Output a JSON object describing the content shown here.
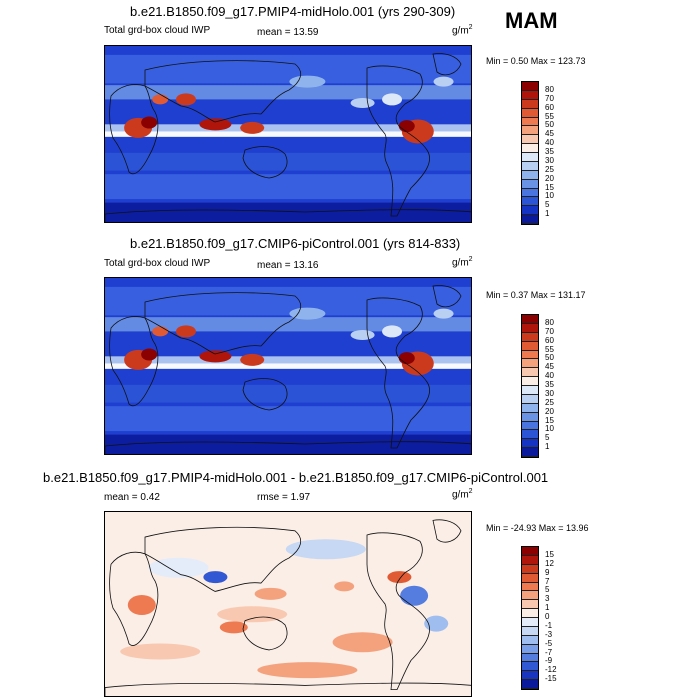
{
  "season": "MAM",
  "units_base": "g/m",
  "units_exp": "2",
  "panels": [
    {
      "title": "b.e21.B1850.f09_g17.PMIP4-midHolo.001 (yrs 290-309)",
      "left_label": "Total grd-box cloud IWP",
      "mean_text": "mean =  13.59",
      "minmax_text": "Min =   0.50 Max = 123.73",
      "colorbar": {
        "labels": [
          "80",
          "70",
          "60",
          "55",
          "50",
          "45",
          "40",
          "35",
          "30",
          "25",
          "20",
          "15",
          "10",
          "5",
          "1"
        ],
        "colors": [
          "#8b0000",
          "#b0150b",
          "#cc3a1d",
          "#e05a34",
          "#ee7a52",
          "#f4a27e",
          "#f8c8b0",
          "#fbeee6",
          "#dce8f8",
          "#b9d0f2",
          "#8fb3ec",
          "#6a93e6",
          "#4a74df",
          "#2c55d6",
          "#1534c4",
          "#0a1a9a"
        ]
      },
      "field": "cloud"
    },
    {
      "title": "b.e21.B1850.f09_g17.CMIP6-piControl.001 (yrs 814-833)",
      "left_label": "Total grd-box cloud IWP",
      "mean_text": "mean =  13.16",
      "minmax_text": "Min =   0.37 Max = 131.17",
      "colorbar": {
        "labels": [
          "80",
          "70",
          "60",
          "55",
          "50",
          "45",
          "40",
          "35",
          "30",
          "25",
          "20",
          "15",
          "10",
          "5",
          "1"
        ],
        "colors": [
          "#8b0000",
          "#b0150b",
          "#cc3a1d",
          "#e05a34",
          "#ee7a52",
          "#f4a27e",
          "#f8c8b0",
          "#fbeee6",
          "#dce8f8",
          "#b9d0f2",
          "#8fb3ec",
          "#6a93e6",
          "#4a74df",
          "#2c55d6",
          "#1534c4",
          "#0a1a9a"
        ]
      },
      "field": "cloud"
    },
    {
      "title": "b.e21.B1850.f09_g17.PMIP4-midHolo.001 - b.e21.B1850.f09_g17.CMIP6-piControl.001",
      "left_label": "mean =   0.42",
      "mean_text": "rmse =   1.97",
      "minmax_text": "Min = -24.93 Max =  13.96",
      "colorbar": {
        "labels": [
          "15",
          "12",
          "9",
          "7",
          "5",
          "3",
          "1",
          "0",
          "-1",
          "-3",
          "-5",
          "-7",
          "-9",
          "-12",
          "-15"
        ],
        "colors": [
          "#8b0000",
          "#b0150b",
          "#cc3a1d",
          "#e05a34",
          "#ee7a52",
          "#f4a27e",
          "#f8c8b0",
          "#fbeee6",
          "#e4ecfa",
          "#c6d8f4",
          "#9fbdee",
          "#7a9fe8",
          "#557de0",
          "#3358d4",
          "#1a36c0",
          "#0a1a9a"
        ]
      },
      "field": "diff"
    }
  ]
}
